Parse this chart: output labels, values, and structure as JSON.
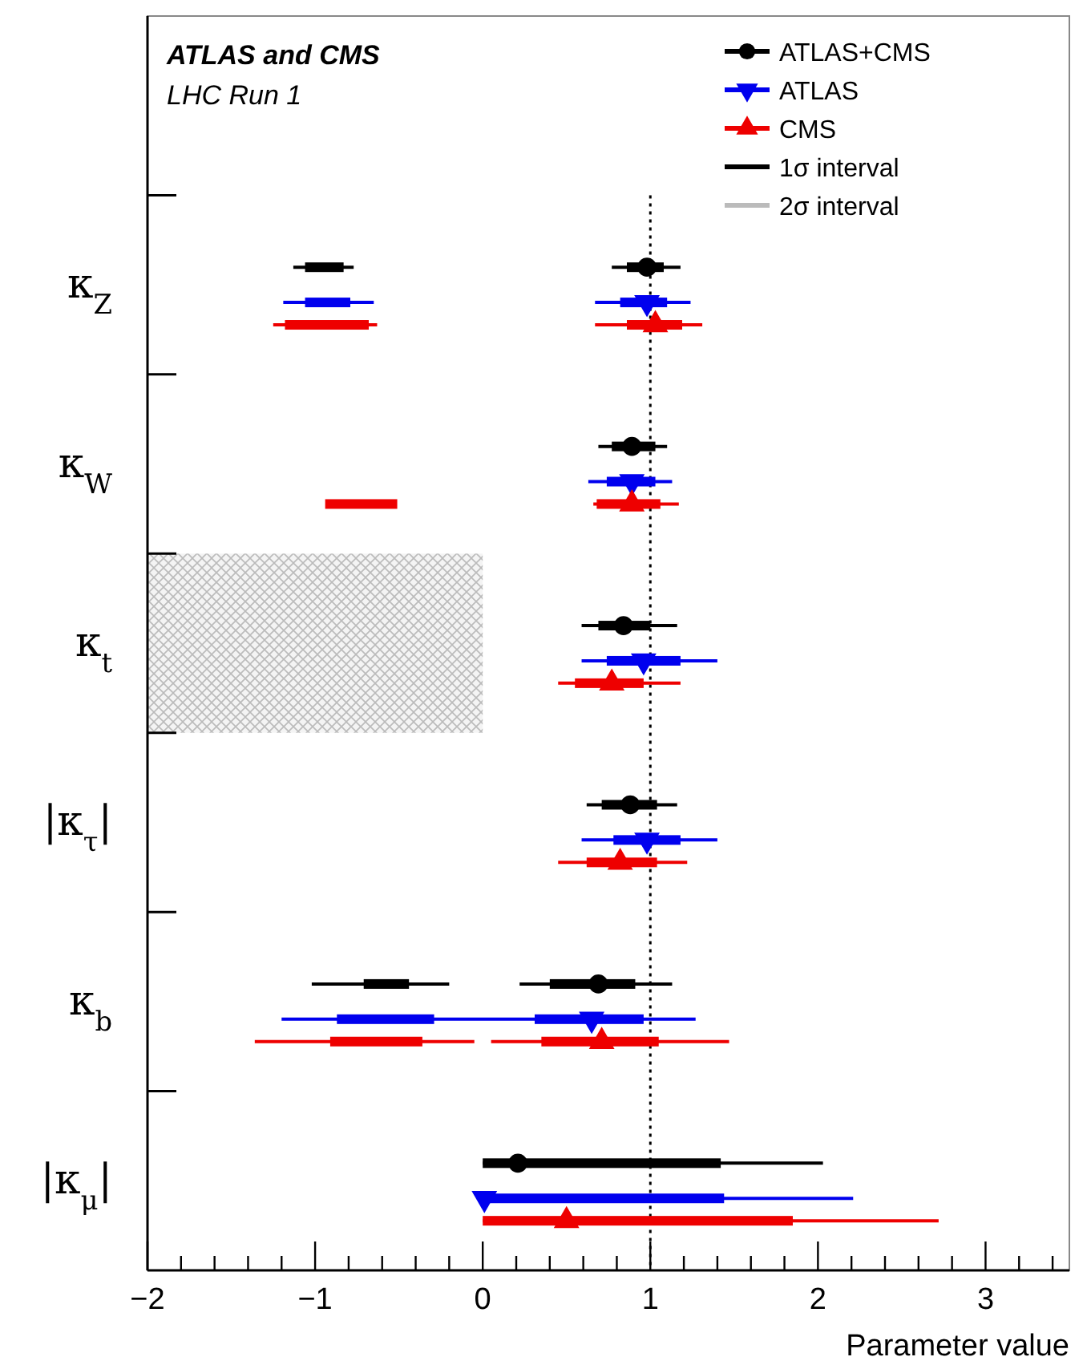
{
  "chart_data": {
    "type": "bar",
    "orientation": "horizontal",
    "title": "ATLAS and CMS",
    "subtitle": "LHC Run 1",
    "xlabel": "Parameter value",
    "categories": [
      "κ$_{Z}$",
      "κ$_{W}$",
      "κ$_{t}$",
      "|κ$_{τ}$|",
      "κ$_{b}$",
      "|κ$_{μ}$|"
    ],
    "xlim": [
      -2,
      3.5
    ],
    "xticks": [
      {
        "value": -2,
        "label": "−2"
      },
      {
        "value": -1.8,
        "label": null
      },
      {
        "value": -1.6,
        "label": null
      },
      {
        "value": -1.4,
        "label": null
      },
      {
        "value": -1.2,
        "label": null
      },
      {
        "value": -1,
        "label": "−1"
      },
      {
        "value": -0.8,
        "label": null
      },
      {
        "value": -0.6,
        "label": null
      },
      {
        "value": -0.4,
        "label": null
      },
      {
        "value": -0.2,
        "label": null
      },
      0,
      {
        "value": 0.2,
        "label": null
      },
      {
        "value": 0.4,
        "label": null
      },
      {
        "value": 0.6,
        "label": null
      },
      {
        "value": 0.8,
        "label": null
      },
      1,
      {
        "value": 1.2,
        "label": null
      },
      {
        "value": 1.4,
        "label": null
      },
      {
        "value": 1.6,
        "label": null
      },
      {
        "value": 1.8,
        "label": null
      },
      2,
      {
        "value": 2.2,
        "label": null
      },
      {
        "value": 2.4,
        "label": null
      },
      {
        "value": 2.6,
        "label": null
      },
      {
        "value": 2.8,
        "label": null
      },
      3,
      {
        "value": 3.2,
        "label": null
      },
      {
        "value": 3.4,
        "label": null
      }
    ],
    "grid": false,
    "legend": "top right",
    "ref_lines": [
      {
        "axis": "x",
        "value": 1,
        "line_style": "dotted",
        "color": "#000000"
      }
    ],
    "series": [
      {
        "color": "#bbbbbb",
        "base": [
          null,
          null,
          -2,
          null,
          null,
          null
        ],
        "values": [
          null,
          null,
          2,
          null,
          null,
          null
        ]
      },
      {
        "color": "#000000",
        "base": [
          0.86,
          0.77,
          0.69,
          0.71,
          0.4,
          0
        ],
        "values": [
          0.22,
          0.26,
          0.31,
          0.33,
          0.51,
          1.42
        ],
        "errors": [
          [
            0.77,
            1.18
          ],
          [
            0.69,
            1.1
          ],
          [
            0.59,
            1.16
          ],
          [
            0.62,
            1.16
          ],
          [
            0.22,
            1.13
          ],
          [
            0,
            2.03
          ]
        ]
      },
      {
        "color": "#0000ee",
        "base": [
          0.82,
          0.74,
          0.74,
          0.78,
          0.31,
          0
        ],
        "values": [
          0.28,
          0.29,
          0.44,
          0.4,
          0.65,
          1.44
        ],
        "errors": [
          [
            0.67,
            1.24
          ],
          [
            0.63,
            1.13
          ],
          [
            0.59,
            1.4
          ],
          [
            0.59,
            1.4
          ],
          [
            -1.2,
            1.27
          ],
          [
            0,
            2.21
          ]
        ]
      },
      {
        "color": "#ee0000",
        "base": [
          0.86,
          0.68,
          0.55,
          0.62,
          0.35,
          0
        ],
        "values": [
          0.33,
          0.38,
          0.41,
          0.42,
          0.7,
          1.85
        ],
        "errors": [
          [
            0.67,
            1.31
          ],
          [
            0.66,
            1.17
          ],
          [
            0.45,
            1.18
          ],
          [
            0.45,
            1.22
          ],
          [
            0.05,
            1.47
          ],
          [
            0,
            2.72
          ]
        ]
      },
      {
        "color": "#000000",
        "base": [
          -1.06,
          null,
          null,
          null,
          -0.71,
          null
        ],
        "values": [
          0.23,
          null,
          null,
          null,
          0.27,
          null
        ],
        "errors": [
          [
            -1.13,
            -0.77
          ],
          null,
          null,
          null,
          [
            -1.02,
            -0.2
          ],
          null
        ]
      },
      {
        "color": "#0000ee",
        "base": [
          -1.06,
          null,
          null,
          null,
          -0.87,
          null
        ],
        "values": [
          0.27,
          null,
          null,
          null,
          0.58,
          null
        ],
        "errors": [
          [
            -1.19,
            -0.65
          ],
          null,
          null,
          null,
          null,
          null
        ]
      },
      {
        "color": "#ee0000",
        "base": [
          -1.18,
          -0.94,
          null,
          null,
          -0.91,
          null
        ],
        "values": [
          0.5,
          0.43,
          null,
          null,
          0.55,
          null
        ],
        "errors": [
          [
            -1.25,
            -0.63
          ],
          null,
          null,
          null,
          [
            -1.36,
            -0.05
          ],
          null
        ]
      },
      {
        "type": "scatter",
        "name": "ATLAS+CMS",
        "color": "#000000",
        "marker": "circle",
        "values": [
          0.98,
          0.89,
          0.84,
          0.88,
          0.69,
          0.21
        ]
      },
      {
        "type": "scatter",
        "name": "ATLAS",
        "color": "#0000ee",
        "marker": "triangle",
        "values": [
          0.98,
          0.89,
          0.96,
          0.98,
          0.65,
          0.01
        ]
      },
      {
        "type": "scatter",
        "name": "CMS",
        "color": "#ee0000",
        "marker": "triangle",
        "values": [
          1.03,
          0.89,
          0.77,
          0.82,
          0.71,
          0.5
        ]
      },
      {
        "type": "line",
        "name": "1σ interval",
        "color": "#000000",
        "values": [
          null,
          null,
          null,
          null,
          null,
          null
        ]
      },
      {
        "type": "line",
        "name": "2σ interval",
        "color": "#bbbbbb",
        "values": [
          null,
          null,
          null,
          null,
          null,
          null
        ]
      }
    ]
  }
}
